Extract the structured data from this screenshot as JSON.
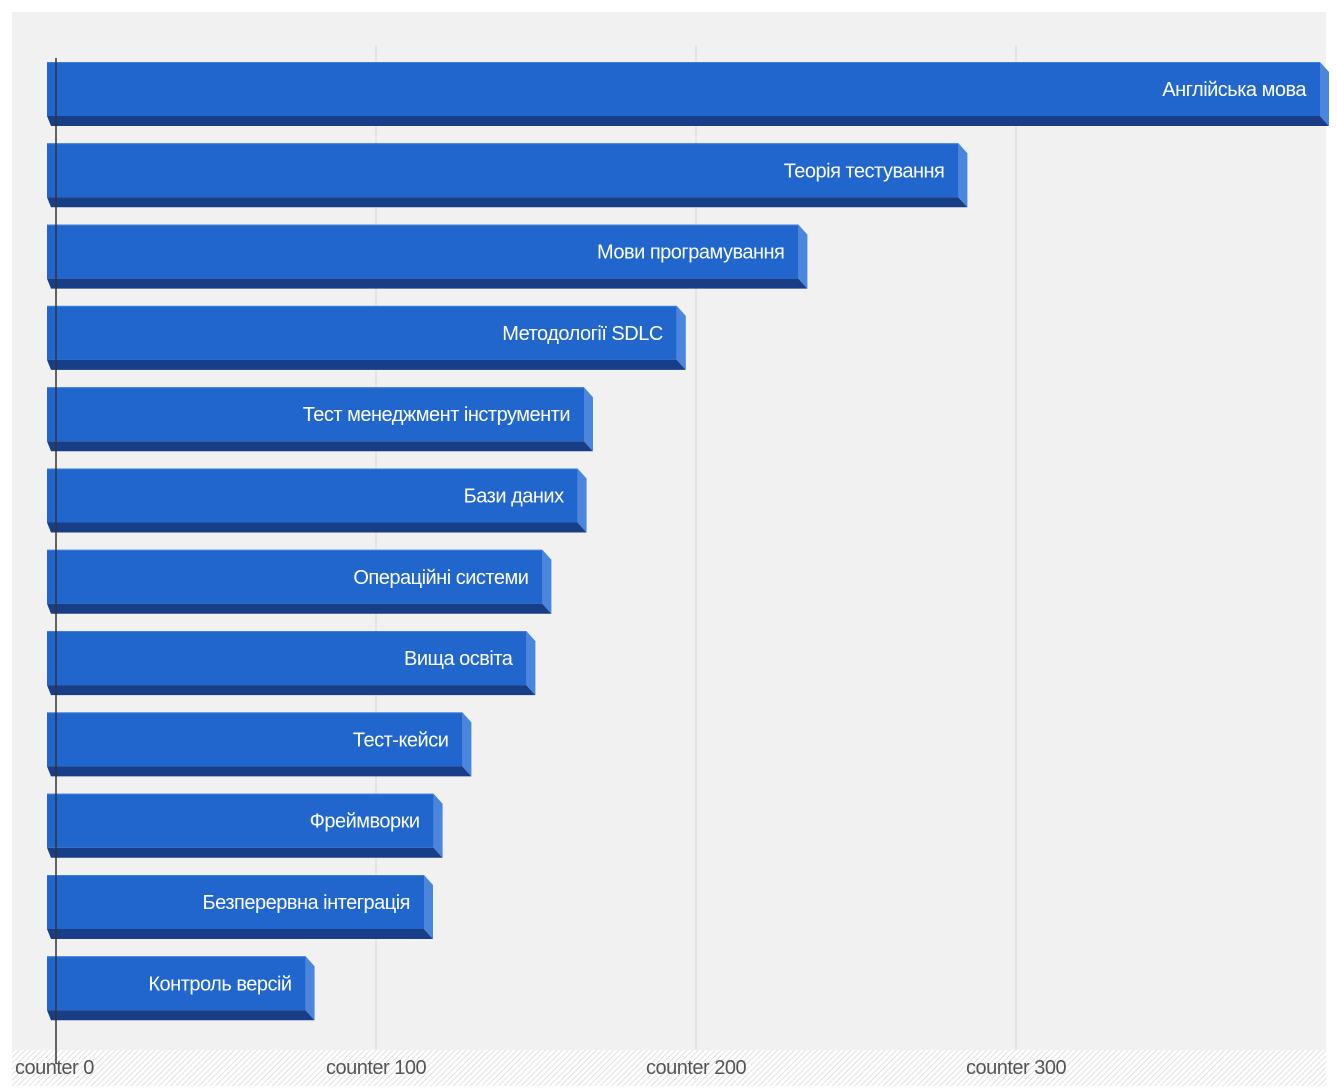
{
  "chart_data": {
    "type": "bar",
    "orientation": "horizontal",
    "style": "3d",
    "categories": [
      "Англійська мова",
      "Теорія тестування",
      "Мови програмування",
      "Методології SDLC",
      "Тест менеджмент інструменти",
      "Бази даних",
      "Операційні системи",
      "Вища освіта",
      "Тест-кейси",
      "Фреймворки",
      "Безперервна інтеграція",
      "Контроль версій"
    ],
    "values": [
      395,
      282,
      232,
      194,
      165,
      163,
      152,
      147,
      127,
      118,
      115,
      78
    ],
    "title": "",
    "xlabel": "",
    "ylabel": "",
    "xlim": [
      0,
      400
    ],
    "x_ticks": [
      0,
      100,
      200,
      300
    ],
    "x_tick_labels": [
      "counter 0",
      "counter 100",
      "counter 200",
      "counter 300"
    ],
    "grid": true,
    "legend": "none",
    "colors": {
      "bar_front": "#2166cc",
      "bar_bottom": "#173e86",
      "bar_side": "#4a86dd",
      "background": "#f1f1f1",
      "gridline": "#d8d8d8",
      "axis": "#333333"
    }
  }
}
